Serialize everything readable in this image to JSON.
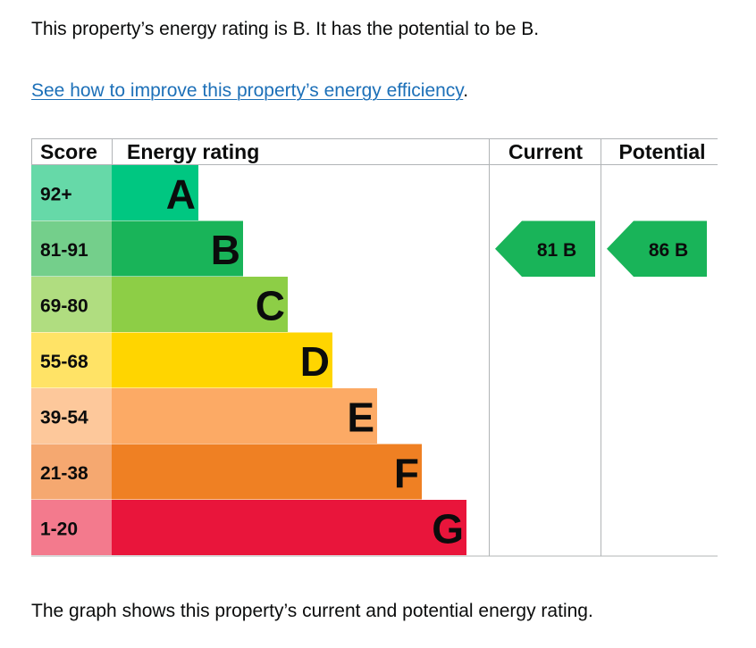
{
  "intro": {
    "text": "This property’s energy rating is B. It has the potential to be B."
  },
  "improve": {
    "link_text": "See how to improve this property’s energy efficiency",
    "trailing": "."
  },
  "outro": {
    "text": "The graph shows this property’s current and potential energy rating."
  },
  "chart_data": {
    "type": "bar",
    "headers": {
      "score": "Score",
      "rating": "Energy rating",
      "current": "Current",
      "potential": "Potential"
    },
    "bands": [
      {
        "score": "92+",
        "letter": "A",
        "color": "#00c781",
        "score_bg": "#66d9a8"
      },
      {
        "score": "81-91",
        "letter": "B",
        "color": "#19b459",
        "score_bg": "#74cf8b"
      },
      {
        "score": "69-80",
        "letter": "C",
        "color": "#8dce46",
        "score_bg": "#b0dd80"
      },
      {
        "score": "55-68",
        "letter": "D",
        "color": "#ffd500",
        "score_bg": "#ffe366"
      },
      {
        "score": "39-54",
        "letter": "E",
        "color": "#fcaa65",
        "score_bg": "#fdc89b"
      },
      {
        "score": "21-38",
        "letter": "F",
        "color": "#ef8023",
        "score_bg": "#f5a870"
      },
      {
        "score": "1-20",
        "letter": "G",
        "color": "#e9153b",
        "score_bg": "#f37a8d"
      }
    ],
    "current": {
      "value": 81,
      "letter": "B",
      "color": "#19b459"
    },
    "potential": {
      "value": 86,
      "letter": "B",
      "color": "#19b459"
    }
  }
}
